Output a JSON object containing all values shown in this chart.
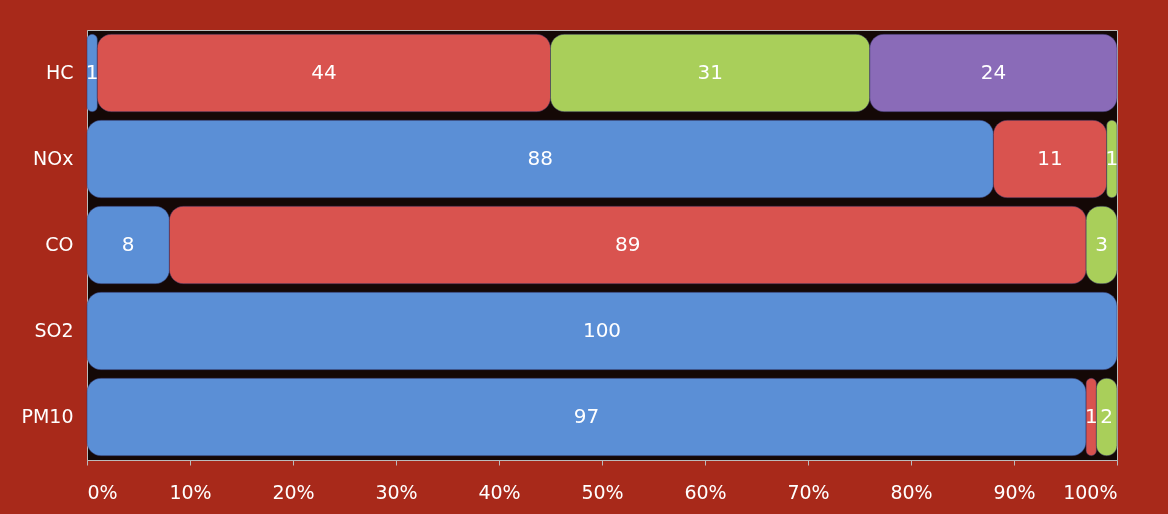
{
  "chart_data": {
    "type": "bar",
    "orientation": "horizontal",
    "stacked": true,
    "categories": [
      "HC",
      "NOx",
      "CO",
      "SO2",
      "PM10"
    ],
    "series": [
      {
        "color": "#5b8fd6",
        "values": [
          1,
          88,
          8,
          100,
          97
        ]
      },
      {
        "color": "#d9534f",
        "values": [
          44,
          11,
          89,
          null,
          1
        ]
      },
      {
        "color": "#a9cf5a",
        "values": [
          31,
          1,
          3,
          null,
          2
        ]
      },
      {
        "color": "#8a6bb8",
        "values": [
          24,
          null,
          null,
          null,
          null
        ]
      }
    ],
    "xlim": [
      0,
      100
    ],
    "xticks": [
      {
        "value": 0,
        "label": "0%"
      },
      {
        "value": 10,
        "label": "10%"
      },
      {
        "value": 20,
        "label": "20%"
      },
      {
        "value": 30,
        "label": "30%"
      },
      {
        "value": 40,
        "label": "40%"
      },
      {
        "value": 50,
        "label": "50%"
      },
      {
        "value": 60,
        "label": "60%"
      },
      {
        "value": 70,
        "label": "70%"
      },
      {
        "value": 80,
        "label": "80%"
      },
      {
        "value": 90,
        "label": "90%"
      },
      {
        "value": 100,
        "label": "100%"
      }
    ],
    "data_labels": true,
    "grid": false
  }
}
